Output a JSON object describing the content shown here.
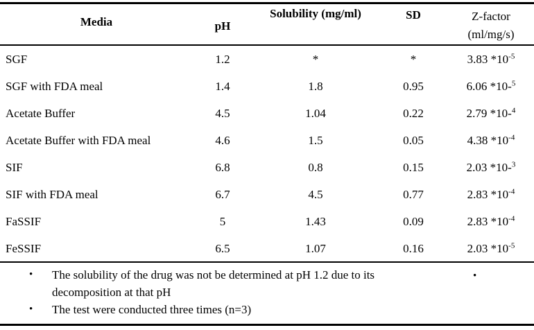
{
  "colors": {
    "background": "#ffffff",
    "text": "#000000",
    "rule": "#000000"
  },
  "table": {
    "header": {
      "media": "Media",
      "ph": "pH",
      "solubility": "Solubility (mg/ml)",
      "sd": "SD",
      "zfactor_line1": "Z-factor",
      "zfactor_line2": "(ml/mg/s)"
    },
    "rows": [
      {
        "media": "SGF",
        "ph": "1.2",
        "solubility": "*",
        "sd": "*",
        "z_base": "3.83 *10",
        "z_sup": "-5"
      },
      {
        "media": "SGF with FDA meal",
        "ph": "1.4",
        "solubility": "1.8",
        "sd": "0.95",
        "z_base": "6.06 *10-",
        "z_sup": "5"
      },
      {
        "media": "Acetate Buffer",
        "ph": "4.5",
        "solubility": "1.04",
        "sd": "0.22",
        "z_base": "2.79 *10-",
        "z_sup": "4"
      },
      {
        "media": "Acetate Buffer with FDA meal",
        "ph": "4.6",
        "solubility": "1.5",
        "sd": "0.05",
        "z_base": "4.38 *10",
        "z_sup": "-4"
      },
      {
        "media": "SIF",
        "ph": "6.8",
        "solubility": "0.8",
        "sd": "0.15",
        "z_base": "2.03 *10-",
        "z_sup": "3"
      },
      {
        "media": "SIF with FDA meal",
        "ph": "6.7",
        "solubility": "4.5",
        "sd": "0.77",
        "z_base": "2.83 *10",
        "z_sup": "-4"
      },
      {
        "media": "FaSSIF",
        "ph": "5",
        "solubility": "1.43",
        "sd": "0.09",
        "z_base": "2.83 *10",
        "z_sup": "-4"
      },
      {
        "media": "FeSSIF",
        "ph": "6.5",
        "solubility": "1.07",
        "sd": "0.16",
        "z_base": "2.03 *10",
        "z_sup": "-5"
      }
    ]
  },
  "footnotes": {
    "bullet": "•",
    "items": [
      {
        "text": "The solubility of the drug was not be determined at pH 1.2 due to its decomposition at that pH"
      },
      {
        "text": "The test were conducted three times (n=3)"
      }
    ],
    "stray_bullet": "•"
  }
}
